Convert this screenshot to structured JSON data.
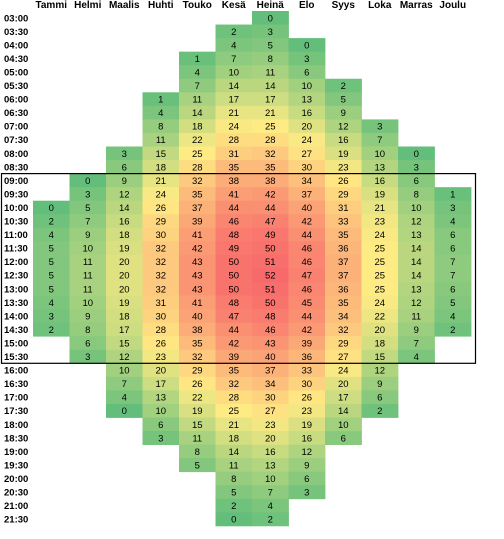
{
  "chart_data": {
    "type": "heatmap",
    "title": "",
    "columns": [
      "Tammi",
      "Helmi",
      "Maalis",
      "Huhti",
      "Touko",
      "Kesä",
      "Heinä",
      "Elo",
      "Syys",
      "Loka",
      "Marras",
      "Joulu"
    ],
    "rows": [
      "03:00",
      "03:30",
      "04:00",
      "04:30",
      "05:00",
      "05:30",
      "06:00",
      "06:30",
      "07:00",
      "07:30",
      "08:00",
      "08:30",
      "09:00",
      "09:30",
      "10:00",
      "10:30",
      "11:00",
      "11:30",
      "12:00",
      "12:30",
      "13:00",
      "13:30",
      "14:00",
      "14:30",
      "15:00",
      "15:30",
      "16:00",
      "16:30",
      "17:00",
      "17:30",
      "18:00",
      "18:30",
      "19:00",
      "19:30",
      "20:00",
      "20:30",
      "21:00",
      "21:30"
    ],
    "values": [
      [
        null,
        null,
        null,
        null,
        null,
        null,
        0,
        null,
        null,
        null,
        null,
        null
      ],
      [
        null,
        null,
        null,
        null,
        null,
        2,
        3,
        null,
        null,
        null,
        null,
        null
      ],
      [
        null,
        null,
        null,
        null,
        null,
        4,
        5,
        0,
        null,
        null,
        null,
        null
      ],
      [
        null,
        null,
        null,
        null,
        1,
        7,
        8,
        3,
        null,
        null,
        null,
        null
      ],
      [
        null,
        null,
        null,
        null,
        4,
        10,
        11,
        6,
        null,
        null,
        null,
        null
      ],
      [
        null,
        null,
        null,
        null,
        7,
        14,
        14,
        10,
        2,
        null,
        null,
        null
      ],
      [
        null,
        null,
        null,
        1,
        11,
        17,
        17,
        13,
        5,
        null,
        null,
        null
      ],
      [
        null,
        null,
        null,
        4,
        14,
        21,
        21,
        16,
        9,
        null,
        null,
        null
      ],
      [
        null,
        null,
        null,
        8,
        18,
        24,
        25,
        20,
        12,
        3,
        null,
        null
      ],
      [
        null,
        null,
        null,
        11,
        22,
        28,
        28,
        24,
        16,
        7,
        null,
        null
      ],
      [
        null,
        null,
        3,
        15,
        25,
        31,
        32,
        27,
        19,
        10,
        0,
        null
      ],
      [
        null,
        null,
        6,
        18,
        28,
        35,
        35,
        30,
        23,
        13,
        3,
        null
      ],
      [
        null,
        0,
        9,
        21,
        32,
        38,
        38,
        34,
        26,
        16,
        6,
        null
      ],
      [
        null,
        3,
        12,
        24,
        35,
        41,
        42,
        37,
        29,
        19,
        8,
        1
      ],
      [
        0,
        5,
        14,
        26,
        37,
        44,
        44,
        40,
        31,
        21,
        10,
        3
      ],
      [
        2,
        7,
        16,
        29,
        39,
        46,
        47,
        42,
        33,
        23,
        12,
        4
      ],
      [
        4,
        9,
        18,
        30,
        41,
        48,
        49,
        44,
        35,
        24,
        13,
        6
      ],
      [
        5,
        10,
        19,
        32,
        42,
        49,
        50,
        46,
        36,
        25,
        14,
        6
      ],
      [
        5,
        11,
        20,
        32,
        43,
        50,
        51,
        46,
        37,
        25,
        14,
        7
      ],
      [
        5,
        11,
        20,
        32,
        43,
        50,
        52,
        47,
        37,
        25,
        14,
        7
      ],
      [
        5,
        11,
        20,
        32,
        43,
        50,
        51,
        46,
        36,
        25,
        13,
        6
      ],
      [
        4,
        10,
        19,
        31,
        41,
        48,
        50,
        45,
        35,
        24,
        12,
        5
      ],
      [
        3,
        9,
        18,
        30,
        40,
        47,
        48,
        44,
        34,
        22,
        11,
        4
      ],
      [
        2,
        8,
        17,
        28,
        38,
        44,
        46,
        42,
        32,
        20,
        9,
        2
      ],
      [
        null,
        6,
        15,
        26,
        35,
        42,
        43,
        39,
        29,
        18,
        7,
        null
      ],
      [
        null,
        3,
        12,
        23,
        32,
        39,
        40,
        36,
        27,
        15,
        4,
        null
      ],
      [
        null,
        null,
        10,
        20,
        29,
        35,
        37,
        33,
        24,
        12,
        null,
        null
      ],
      [
        null,
        null,
        7,
        17,
        26,
        32,
        34,
        30,
        20,
        9,
        null,
        null
      ],
      [
        null,
        null,
        4,
        13,
        22,
        28,
        30,
        26,
        17,
        6,
        null,
        null
      ],
      [
        null,
        null,
        0,
        10,
        19,
        25,
        27,
        23,
        14,
        2,
        null,
        null
      ],
      [
        null,
        null,
        null,
        6,
        15,
        21,
        23,
        19,
        10,
        null,
        null,
        null
      ],
      [
        null,
        null,
        null,
        3,
        11,
        18,
        20,
        16,
        6,
        null,
        null,
        null
      ],
      [
        null,
        null,
        null,
        null,
        8,
        14,
        16,
        12,
        null,
        null,
        null,
        null
      ],
      [
        null,
        null,
        null,
        null,
        5,
        11,
        13,
        9,
        null,
        null,
        null,
        null
      ],
      [
        null,
        null,
        null,
        null,
        null,
        8,
        10,
        6,
        null,
        null,
        null,
        null
      ],
      [
        null,
        null,
        null,
        null,
        null,
        5,
        7,
        3,
        null,
        null,
        null,
        null
      ],
      [
        null,
        null,
        null,
        null,
        null,
        2,
        4,
        null,
        null,
        null,
        null,
        null
      ],
      [
        null,
        null,
        null,
        null,
        null,
        0,
        2,
        null,
        null,
        null,
        null,
        null
      ]
    ],
    "highlight_rows": [
      "09:00",
      "15:30"
    ],
    "color_scale": {
      "min": 0,
      "mid": 25,
      "max": 52,
      "low": "#63be7b",
      "middle": "#ffeb84",
      "high": "#f8696b"
    }
  }
}
